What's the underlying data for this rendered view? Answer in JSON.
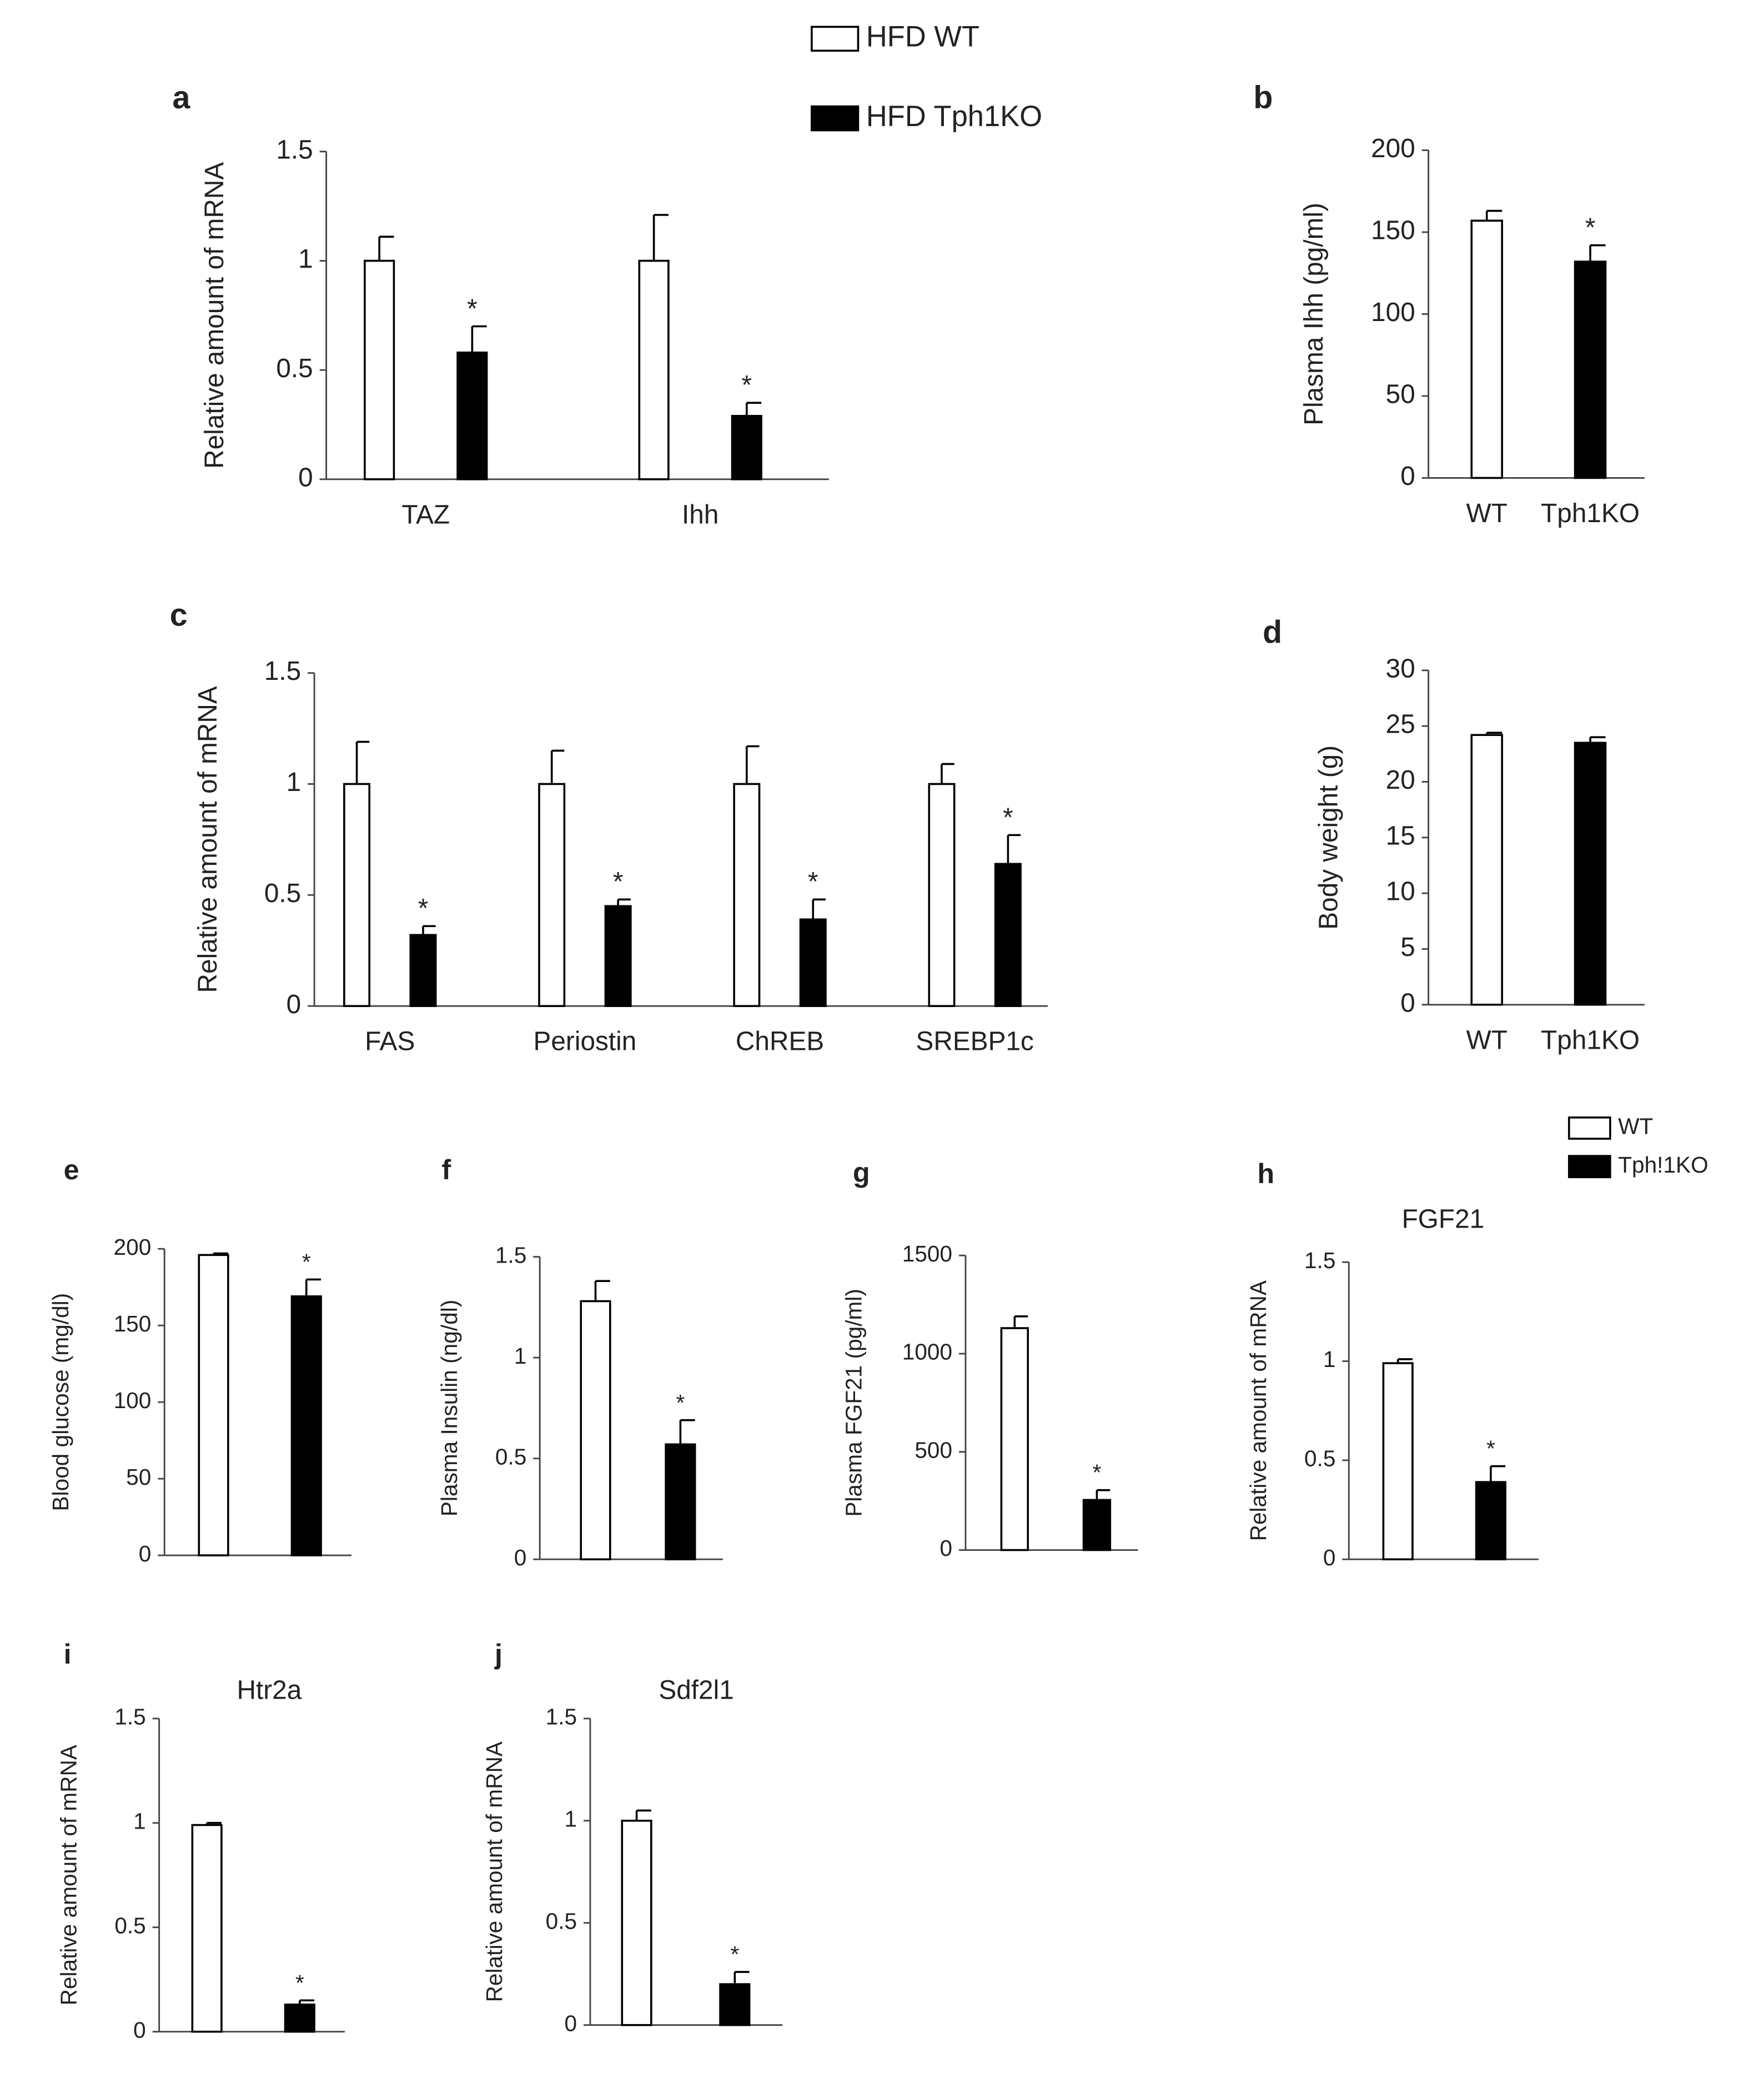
{
  "chart_data": [
    {
      "type": "bar",
      "panel": "a",
      "ylabel": "Relative amount of mRNA",
      "categories": [
        "TAZ",
        "Ihh"
      ],
      "series": [
        {
          "name": "HFD WT",
          "color": "#ffffff",
          "values": [
            1,
            1
          ],
          "errors": [
            0.11,
            0.21
          ]
        },
        {
          "name": "HFD Tph1KO",
          "color": "#000000",
          "values": [
            0.58,
            0.29
          ],
          "errors": [
            0.12,
            0.06
          ],
          "sig": [
            "*",
            "*"
          ]
        }
      ],
      "ylim": [
        0,
        1.5
      ],
      "yticks": [
        0,
        0.5,
        1,
        1.5
      ],
      "legend": "top"
    },
    {
      "type": "bar",
      "panel": "b",
      "ylabel": "Plasma Ihh (pg/ml)",
      "categories": [
        "WT",
        "Tph1KO"
      ],
      "values": [
        157,
        132
      ],
      "errors": [
        6,
        10
      ],
      "colors": [
        "#ffffff",
        "#000000"
      ],
      "sig": [
        null,
        "*"
      ],
      "ylim": [
        0,
        200
      ],
      "yticks": [
        0,
        50,
        100,
        150,
        200
      ]
    },
    {
      "type": "bar",
      "panel": "c",
      "ylabel": "Relative amount of mRNA",
      "categories": [
        "FAS",
        "Periostin",
        "ChREB",
        "SREBP1c"
      ],
      "series": [
        {
          "name": "HFD WT",
          "color": "#ffffff",
          "values": [
            1,
            1,
            1,
            1
          ],
          "errors": [
            0.19,
            0.15,
            0.17,
            0.09
          ]
        },
        {
          "name": "HFD Tph1KO",
          "color": "#000000",
          "values": [
            0.32,
            0.45,
            0.39,
            0.64
          ],
          "errors": [
            0.04,
            0.03,
            0.09,
            0.13
          ],
          "sig": [
            "*",
            "*",
            "*",
            "*"
          ]
        }
      ],
      "ylim": [
        0,
        1.5
      ],
      "yticks": [
        0,
        0.5,
        1,
        1.5
      ]
    },
    {
      "type": "bar",
      "panel": "d",
      "ylabel": "Body weight (g)",
      "categories": [
        "WT",
        "Tph1KO"
      ],
      "values": [
        24.2,
        23.5
      ],
      "errors": [
        0.2,
        0.5
      ],
      "colors": [
        "#ffffff",
        "#000000"
      ],
      "ylim": [
        0,
        30
      ],
      "yticks": [
        0,
        5,
        10,
        15,
        20,
        25,
        30
      ]
    },
    {
      "type": "bar",
      "panel": "e",
      "ylabel": "Blood glucose (mg/dl)",
      "categories": [
        null
      ],
      "series": [
        {
          "name": "WT",
          "color": "#ffffff",
          "values": [
            196
          ],
          "errors": [
            1
          ]
        },
        {
          "name": "Tph!1KO",
          "color": "#000000",
          "values": [
            169
          ],
          "errors": [
            11
          ],
          "sig": [
            "*"
          ]
        }
      ],
      "ylim": [
        0,
        200
      ],
      "yticks": [
        0,
        50,
        100,
        150,
        200
      ],
      "legend": "right"
    },
    {
      "type": "bar",
      "panel": "f",
      "ylabel": "Plasma Insulin (ng/dl)",
      "categories": [
        null
      ],
      "series": [
        {
          "name": "WT",
          "color": "#ffffff",
          "values": [
            1.28
          ],
          "errors": [
            0.1
          ]
        },
        {
          "name": "Tph!1KO",
          "color": "#000000",
          "values": [
            0.57
          ],
          "errors": [
            0.12
          ],
          "sig": [
            "*"
          ]
        }
      ],
      "ylim": [
        0,
        1.5
      ],
      "yticks": [
        0,
        0.5,
        1,
        1.5
      ]
    },
    {
      "type": "bar",
      "panel": "g",
      "ylabel": "Plasma FGF21 (pg/ml)",
      "categories": [
        null
      ],
      "series": [
        {
          "name": "WT",
          "color": "#ffffff",
          "values": [
            1130
          ],
          "errors": [
            60
          ]
        },
        {
          "name": "Tph!1KO",
          "color": "#000000",
          "values": [
            255
          ],
          "errors": [
            50
          ],
          "sig": [
            "*"
          ]
        }
      ],
      "ylim": [
        0,
        1500
      ],
      "yticks": [
        0,
        500,
        1000,
        1500
      ]
    },
    {
      "type": "bar",
      "panel": "h",
      "title": "FGF21",
      "ylabel": "Relative amount of mRNA",
      "categories": [
        null
      ],
      "series": [
        {
          "name": "WT",
          "color": "#ffffff",
          "values": [
            0.99
          ],
          "errors": [
            0.02
          ]
        },
        {
          "name": "Tph!1KO",
          "color": "#000000",
          "values": [
            0.39
          ],
          "errors": [
            0.08
          ],
          "sig": [
            "*"
          ]
        }
      ],
      "ylim": [
        0,
        1.5
      ],
      "yticks": [
        0,
        0.5,
        1,
        1.5
      ]
    },
    {
      "type": "bar",
      "panel": "i",
      "title": "Htr2a",
      "ylabel": "Relative amount of mRNA",
      "categories": [
        null
      ],
      "series": [
        {
          "name": "WT",
          "color": "#ffffff",
          "values": [
            0.99
          ],
          "errors": [
            0.01
          ]
        },
        {
          "name": "Tph!1KO",
          "color": "#000000",
          "values": [
            0.13
          ],
          "errors": [
            0.02
          ],
          "sig": [
            "*"
          ]
        }
      ],
      "ylim": [
        0,
        1.5
      ],
      "yticks": [
        0,
        0.5,
        1,
        1.5
      ]
    },
    {
      "type": "bar",
      "panel": "j",
      "title": "Sdf2l1",
      "ylabel": "Relative amount of mRNA",
      "categories": [
        null
      ],
      "series": [
        {
          "name": "WT",
          "color": "#ffffff",
          "values": [
            1
          ],
          "errors": [
            0.05
          ]
        },
        {
          "name": "Tph!1KO",
          "color": "#000000",
          "values": [
            0.2
          ],
          "errors": [
            0.06
          ],
          "sig": [
            "*"
          ]
        }
      ],
      "ylim": [
        0,
        1.5
      ],
      "yticks": [
        0,
        0.5,
        1,
        1.5
      ]
    }
  ]
}
